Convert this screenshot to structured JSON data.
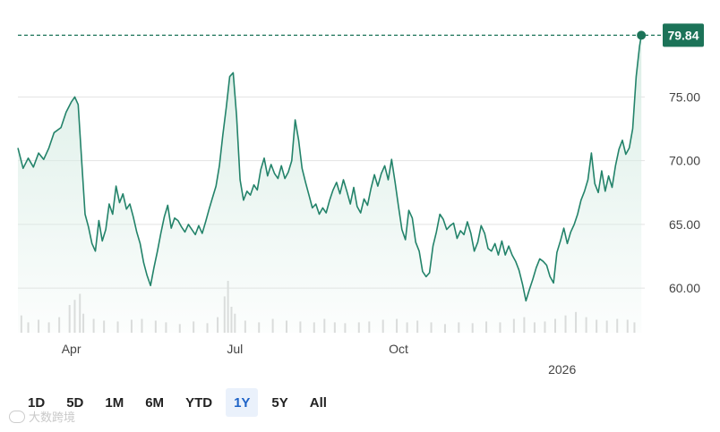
{
  "chart_data": {
    "type": "area",
    "colors": {
      "line": "#23836a",
      "fill_top": "#d9ede5",
      "badge": "#1c7358",
      "grid": "#e2e2e2",
      "volume": "#dadada"
    },
    "ylim": [
      56.5,
      80.5
    ],
    "y_ticks": [
      {
        "value": 60,
        "label": "60.00"
      },
      {
        "value": 65,
        "label": "65.00"
      },
      {
        "value": 70,
        "label": "70.00"
      },
      {
        "value": 75,
        "label": "75.00"
      }
    ],
    "x_ticks": [
      {
        "index": 31,
        "label": "Apr",
        "row": 1
      },
      {
        "index": 126,
        "label": "Jul",
        "row": 1
      },
      {
        "index": 221,
        "label": "Oct",
        "row": 1
      },
      {
        "index": 316,
        "label": "2026",
        "row": 2
      }
    ],
    "x_count": 365,
    "last_value": 79.84,
    "last_label": "79.84",
    "series": [
      {
        "points": [
          [
            0,
            71.0
          ],
          [
            3,
            69.4
          ],
          [
            6,
            70.2
          ],
          [
            9,
            69.5
          ],
          [
            12,
            70.6
          ],
          [
            15,
            70.1
          ],
          [
            18,
            71.0
          ],
          [
            21,
            72.2
          ],
          [
            25,
            72.6
          ],
          [
            28,
            73.8
          ],
          [
            31,
            74.6
          ],
          [
            33,
            75.0
          ],
          [
            35,
            74.4
          ],
          [
            37,
            70.0
          ],
          [
            39,
            65.8
          ],
          [
            41,
            64.8
          ],
          [
            43,
            63.5
          ],
          [
            45,
            62.9
          ],
          [
            47,
            65.3
          ],
          [
            49,
            63.7
          ],
          [
            51,
            64.6
          ],
          [
            53,
            66.6
          ],
          [
            55,
            65.8
          ],
          [
            57,
            68.0
          ],
          [
            59,
            66.7
          ],
          [
            61,
            67.4
          ],
          [
            63,
            66.2
          ],
          [
            65,
            66.6
          ],
          [
            67,
            65.6
          ],
          [
            69,
            64.4
          ],
          [
            71,
            63.5
          ],
          [
            73,
            62.0
          ],
          [
            75,
            61.0
          ],
          [
            77,
            60.2
          ],
          [
            79,
            61.6
          ],
          [
            81,
            62.9
          ],
          [
            83,
            64.3
          ],
          [
            85,
            65.6
          ],
          [
            87,
            66.5
          ],
          [
            89,
            64.7
          ],
          [
            91,
            65.5
          ],
          [
            93,
            65.3
          ],
          [
            95,
            64.8
          ],
          [
            97,
            64.4
          ],
          [
            99,
            65.0
          ],
          [
            101,
            64.6
          ],
          [
            103,
            64.2
          ],
          [
            105,
            64.9
          ],
          [
            107,
            64.3
          ],
          [
            109,
            65.2
          ],
          [
            111,
            66.2
          ],
          [
            113,
            67.1
          ],
          [
            115,
            68.0
          ],
          [
            117,
            69.6
          ],
          [
            119,
            72.0
          ],
          [
            121,
            74.2
          ],
          [
            123,
            76.6
          ],
          [
            125,
            76.9
          ],
          [
            127,
            73.5
          ],
          [
            129,
            68.5
          ],
          [
            131,
            66.9
          ],
          [
            133,
            67.6
          ],
          [
            135,
            67.3
          ],
          [
            137,
            68.1
          ],
          [
            139,
            67.7
          ],
          [
            141,
            69.3
          ],
          [
            143,
            70.2
          ],
          [
            145,
            68.8
          ],
          [
            147,
            69.7
          ],
          [
            149,
            69.0
          ],
          [
            151,
            68.6
          ],
          [
            153,
            69.6
          ],
          [
            155,
            68.6
          ],
          [
            157,
            69.1
          ],
          [
            159,
            70.0
          ],
          [
            161,
            73.2
          ],
          [
            163,
            71.6
          ],
          [
            165,
            69.4
          ],
          [
            167,
            68.3
          ],
          [
            169,
            67.3
          ],
          [
            171,
            66.3
          ],
          [
            173,
            66.6
          ],
          [
            175,
            65.8
          ],
          [
            177,
            66.3
          ],
          [
            179,
            65.9
          ],
          [
            181,
            66.9
          ],
          [
            183,
            67.7
          ],
          [
            185,
            68.3
          ],
          [
            187,
            67.4
          ],
          [
            189,
            68.5
          ],
          [
            191,
            67.6
          ],
          [
            193,
            66.6
          ],
          [
            195,
            67.9
          ],
          [
            197,
            66.4
          ],
          [
            199,
            65.9
          ],
          [
            201,
            67.0
          ],
          [
            203,
            66.5
          ],
          [
            205,
            67.8
          ],
          [
            207,
            68.9
          ],
          [
            209,
            68.0
          ],
          [
            211,
            69.0
          ],
          [
            213,
            69.6
          ],
          [
            215,
            68.5
          ],
          [
            217,
            70.1
          ],
          [
            219,
            68.3
          ],
          [
            221,
            66.4
          ],
          [
            223,
            64.6
          ],
          [
            225,
            63.8
          ],
          [
            227,
            66.1
          ],
          [
            229,
            65.5
          ],
          [
            231,
            63.6
          ],
          [
            233,
            62.9
          ],
          [
            235,
            61.3
          ],
          [
            237,
            60.9
          ],
          [
            239,
            61.2
          ],
          [
            241,
            63.3
          ],
          [
            243,
            64.4
          ],
          [
            245,
            65.8
          ],
          [
            247,
            65.4
          ],
          [
            249,
            64.6
          ],
          [
            251,
            64.9
          ],
          [
            253,
            65.1
          ],
          [
            255,
            63.9
          ],
          [
            257,
            64.5
          ],
          [
            259,
            64.2
          ],
          [
            261,
            65.2
          ],
          [
            263,
            64.3
          ],
          [
            265,
            62.9
          ],
          [
            267,
            63.6
          ],
          [
            269,
            64.9
          ],
          [
            271,
            64.3
          ],
          [
            273,
            63.1
          ],
          [
            275,
            62.9
          ],
          [
            277,
            63.5
          ],
          [
            279,
            62.6
          ],
          [
            281,
            63.7
          ],
          [
            283,
            62.6
          ],
          [
            285,
            63.3
          ],
          [
            287,
            62.6
          ],
          [
            289,
            62.1
          ],
          [
            291,
            61.4
          ],
          [
            293,
            60.3
          ],
          [
            295,
            59.0
          ],
          [
            297,
            59.9
          ],
          [
            299,
            60.7
          ],
          [
            301,
            61.6
          ],
          [
            303,
            62.3
          ],
          [
            305,
            62.1
          ],
          [
            307,
            61.8
          ],
          [
            309,
            60.9
          ],
          [
            311,
            60.4
          ],
          [
            313,
            62.8
          ],
          [
            315,
            63.7
          ],
          [
            317,
            64.7
          ],
          [
            319,
            63.5
          ],
          [
            321,
            64.4
          ],
          [
            323,
            65.0
          ],
          [
            325,
            65.8
          ],
          [
            327,
            66.9
          ],
          [
            329,
            67.6
          ],
          [
            331,
            68.5
          ],
          [
            333,
            70.6
          ],
          [
            335,
            68.2
          ],
          [
            337,
            67.5
          ],
          [
            339,
            69.2
          ],
          [
            341,
            67.6
          ],
          [
            343,
            68.8
          ],
          [
            345,
            67.9
          ],
          [
            347,
            69.6
          ],
          [
            349,
            70.9
          ],
          [
            351,
            71.6
          ],
          [
            353,
            70.5
          ],
          [
            355,
            71.0
          ],
          [
            357,
            72.5
          ],
          [
            359,
            76.6
          ],
          [
            361,
            79.0
          ],
          [
            362,
            79.84
          ]
        ]
      }
    ],
    "volume": [
      [
        2,
        2.0
      ],
      [
        6,
        1.2
      ],
      [
        12,
        1.5
      ],
      [
        18,
        1.2
      ],
      [
        24,
        1.8
      ],
      [
        30,
        3.2
      ],
      [
        33,
        3.8
      ],
      [
        36,
        4.5
      ],
      [
        38,
        2.2
      ],
      [
        44,
        1.6
      ],
      [
        50,
        1.4
      ],
      [
        58,
        1.3
      ],
      [
        66,
        1.5
      ],
      [
        72,
        1.6
      ],
      [
        80,
        1.4
      ],
      [
        86,
        1.2
      ],
      [
        94,
        1.0
      ],
      [
        102,
        1.3
      ],
      [
        110,
        1.1
      ],
      [
        116,
        1.8
      ],
      [
        120,
        4.2
      ],
      [
        122,
        6.0
      ],
      [
        124,
        3.0
      ],
      [
        126,
        2.2
      ],
      [
        132,
        1.4
      ],
      [
        140,
        1.2
      ],
      [
        148,
        1.6
      ],
      [
        156,
        1.4
      ],
      [
        164,
        1.3
      ],
      [
        172,
        1.2
      ],
      [
        178,
        1.6
      ],
      [
        184,
        1.2
      ],
      [
        190,
        1.1
      ],
      [
        198,
        1.2
      ],
      [
        204,
        1.3
      ],
      [
        212,
        1.5
      ],
      [
        220,
        1.6
      ],
      [
        226,
        1.2
      ],
      [
        232,
        1.4
      ],
      [
        240,
        1.2
      ],
      [
        248,
        1.0
      ],
      [
        256,
        1.2
      ],
      [
        264,
        1.1
      ],
      [
        272,
        1.3
      ],
      [
        280,
        1.2
      ],
      [
        288,
        1.6
      ],
      [
        294,
        1.8
      ],
      [
        300,
        1.2
      ],
      [
        306,
        1.3
      ],
      [
        312,
        1.6
      ],
      [
        318,
        2.0
      ],
      [
        324,
        2.4
      ],
      [
        330,
        1.8
      ],
      [
        336,
        1.5
      ],
      [
        342,
        1.4
      ],
      [
        348,
        1.6
      ],
      [
        354,
        1.5
      ],
      [
        358,
        1.2
      ]
    ]
  },
  "range_buttons": [
    {
      "label": "1D",
      "active": false
    },
    {
      "label": "5D",
      "active": false
    },
    {
      "label": "1M",
      "active": false
    },
    {
      "label": "6M",
      "active": false
    },
    {
      "label": "YTD",
      "active": false
    },
    {
      "label": "1Y",
      "active": true
    },
    {
      "label": "5Y",
      "active": false
    },
    {
      "label": "All",
      "active": false
    }
  ],
  "watermark": {
    "text": "大数跨境",
    "icon": "brand-logo-icon"
  }
}
